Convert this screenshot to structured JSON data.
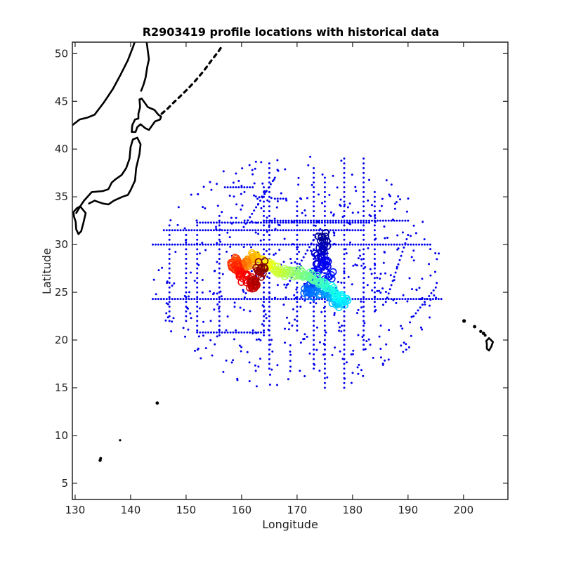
{
  "chart_data": {
    "type": "scatter",
    "title": "R2903419 profile locations with historical data",
    "xlabel": "Longitude",
    "ylabel": "Latitude",
    "xlim": [
      129.5,
      208
    ],
    "ylim": [
      3.3,
      51.2
    ],
    "xticks": [
      130,
      140,
      150,
      160,
      170,
      180,
      190,
      200
    ],
    "yticks": [
      5,
      10,
      15,
      20,
      25,
      30,
      35,
      40,
      45,
      50
    ],
    "grid": false,
    "colors": {
      "historical": "#0000ee",
      "coast": "#000000",
      "colormap": [
        "#00008f",
        "#0000ff",
        "#0080ff",
        "#00ffff",
        "#80ff80",
        "#ffff00",
        "#ff8000",
        "#ff0000",
        "#800000"
      ]
    },
    "historical_lines": [
      {
        "x": [
          144,
          194
        ],
        "y": [
          30,
          30
        ]
      },
      {
        "x": [
          144,
          196
        ],
        "y": [
          24.3,
          24.3
        ]
      },
      {
        "x": [
          146,
          182
        ],
        "y": [
          31.5,
          31.5
        ]
      },
      {
        "x": [
          152,
          183
        ],
        "y": [
          32.3,
          32.3
        ]
      },
      {
        "x": [
          152,
          164
        ],
        "y": [
          20.8,
          20.8
        ]
      },
      {
        "x": [
          164,
          190
        ],
        "y": [
          32.5,
          32.5
        ]
      },
      {
        "x": [
          178.5,
          178.5
        ],
        "y": [
          15,
          39
        ]
      },
      {
        "x": [
          175,
          175
        ],
        "y": [
          15,
          37
        ]
      },
      {
        "x": [
          182,
          182
        ],
        "y": [
          19,
          39
        ]
      },
      {
        "x": [
          184,
          184
        ],
        "y": [
          23,
          35.5
        ]
      },
      {
        "x": [
          165,
          165
        ],
        "y": [
          17,
          38.5
        ]
      },
      {
        "x": [
          152,
          152
        ],
        "y": [
          21,
          32
        ]
      },
      {
        "x": [
          156,
          156
        ],
        "y": [
          20.5,
          33
        ]
      },
      {
        "x": [
          164,
          164
        ],
        "y": [
          20.5,
          36
        ]
      },
      {
        "x": [
          170,
          170
        ],
        "y": [
          21,
          34.5
        ]
      },
      {
        "x": [
          173,
          173
        ],
        "y": [
          17,
          38
        ]
      },
      {
        "x": [
          150,
          150
        ],
        "y": [
          22,
          31
        ]
      },
      {
        "x": [
          147,
          147
        ],
        "y": [
          22,
          32
        ]
      },
      {
        "x": [
          160,
          166
        ],
        "y": [
          31.5,
          37
        ]
      },
      {
        "x": [
          186,
          190
        ],
        "y": [
          24,
          31
        ]
      },
      {
        "x": [
          191,
          195
        ],
        "y": [
          22.5,
          25.5
        ]
      },
      {
        "x": [
          166,
          168
        ],
        "y": [
          34.8,
          34.8
        ]
      },
      {
        "x": [
          157,
          162
        ],
        "y": [
          36,
          36
        ]
      },
      {
        "x": [
          168,
          174
        ],
        "y": [
          25.5,
          31.5
        ]
      }
    ],
    "historical_scatter_count": 520,
    "series": [
      {
        "x": [
          174.5,
          174.8,
          175.2,
          175.0,
          174.2,
          173.8,
          174.0,
          175.5,
          174.6,
          173.6,
          175.8,
          174.4,
          173.4,
          172.7,
          172.2,
          171.8,
          172.5,
          173.6,
          174.5,
          175.3,
          176.0,
          176.8,
          177.5,
          178.2,
          178.6,
          177.9,
          177.2,
          176.4,
          175.6,
          174.8,
          174.0,
          173.2,
          172.4,
          171.6,
          170.8,
          170.0,
          169.2,
          168.4,
          167.6,
          166.8,
          166.0,
          165.3,
          164.6,
          164.0,
          163.6,
          163.2,
          162.8,
          162.4,
          162.0,
          161.6,
          161.2,
          160.8,
          160.4,
          160.0,
          159.6,
          159.2,
          158.8,
          158.6,
          158.9,
          159.4,
          160.0,
          160.6,
          161.2,
          161.7,
          162.1,
          162.4,
          162.6,
          162.9,
          163.3,
          163.6
        ],
        "y": [
          30.9,
          30.3,
          30.0,
          29.6,
          29.2,
          28.8,
          28.3,
          27.9,
          27.6,
          27.2,
          26.8,
          26.3,
          25.9,
          25.6,
          25.3,
          25.0,
          24.8,
          24.9,
          25.1,
          25.0,
          24.6,
          24.2,
          23.9,
          23.6,
          24.0,
          24.4,
          24.7,
          25.1,
          25.4,
          25.8,
          26.2,
          26.5,
          26.7,
          26.9,
          27.0,
          27.0,
          26.9,
          27.0,
          27.1,
          27.3,
          27.5,
          27.7,
          27.9,
          28.1,
          28.3,
          28.5,
          28.6,
          28.7,
          28.6,
          28.4,
          28.2,
          28.0,
          27.8,
          27.6,
          27.7,
          27.9,
          28.2,
          28.0,
          27.6,
          27.2,
          26.8,
          26.5,
          26.2,
          25.9,
          25.8,
          26.0,
          26.4,
          26.9,
          27.4,
          27.9
        ]
      }
    ]
  }
}
